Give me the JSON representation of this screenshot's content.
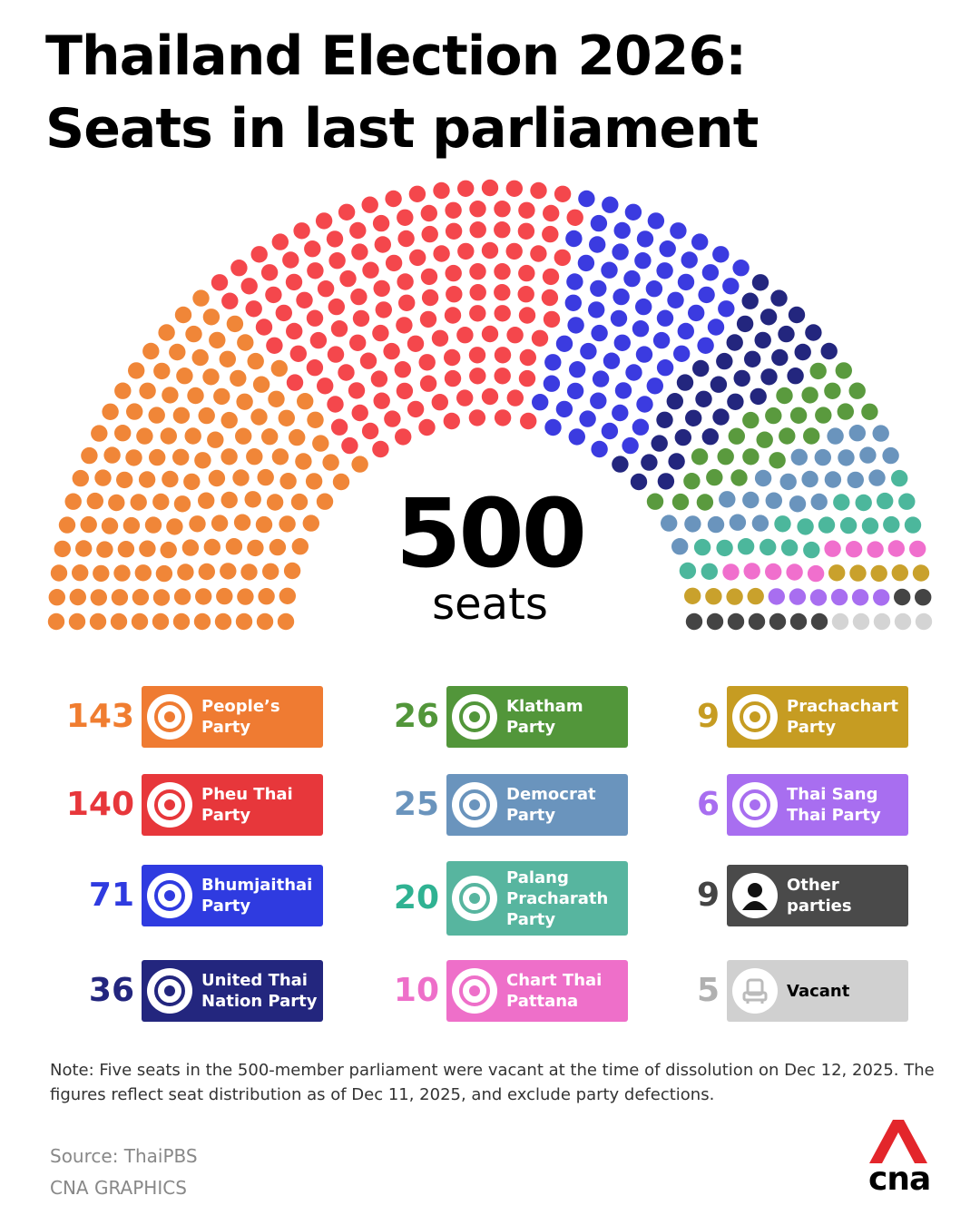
{
  "title_line1": "Thailand Election 2026:",
  "title_line2": "Seats in last parliament",
  "total": {
    "number": "500",
    "label": "seats"
  },
  "chart_data": {
    "type": "hemicycle",
    "title": "Thailand Election 2026: Seats in last parliament",
    "total_seats": 500,
    "series": [
      {
        "name": "People’s Party",
        "count": 143,
        "color": "#f08638"
      },
      {
        "name": "Pheu Thai Party",
        "count": 140,
        "color": "#f4474c"
      },
      {
        "name": "Bhumjaithai Party",
        "count": 71,
        "color": "#3b3be0"
      },
      {
        "name": "United Thai Nation Party",
        "count": 36,
        "color": "#23267e"
      },
      {
        "name": "Klatham Party",
        "count": 26,
        "color": "#5a9a3e"
      },
      {
        "name": "Democrat Party",
        "count": 25,
        "color": "#6a94bd"
      },
      {
        "name": "Palang Pracharath Party",
        "count": 20,
        "color": "#4cb79c"
      },
      {
        "name": "Chart Thai Pattana",
        "count": 10,
        "color": "#f06fcd"
      },
      {
        "name": "Prachachart Party",
        "count": 9,
        "color": "#c9a12c"
      },
      {
        "name": "Thai Sang Thai Party",
        "count": 6,
        "color": "#a86ef0"
      },
      {
        "name": "Other parties",
        "count": 9,
        "color": "#444444"
      },
      {
        "name": "Vacant",
        "count": 5,
        "color": "#d4d4d4"
      }
    ]
  },
  "legend": [
    {
      "count": "143",
      "name": "People’s\nParty",
      "count_color": "#f07d30",
      "box_color": "#ef7b32",
      "icon": "peoples-party-logo"
    },
    {
      "count": "140",
      "name": "Pheu Thai\nParty",
      "count_color": "#e7373b",
      "box_color": "#e7373b",
      "icon": "pheu-thai-logo"
    },
    {
      "count": "71",
      "name": "Bhumjaithai\nParty",
      "count_color": "#2f3be0",
      "box_color": "#2f3be0",
      "icon": "bhumjaithai-logo"
    },
    {
      "count": "36",
      "name": "United Thai\nNation Party",
      "count_color": "#23267e",
      "box_color": "#23267e",
      "icon": "united-thai-nation-logo"
    },
    {
      "count": "26",
      "name": "Klatham\nParty",
      "count_color": "#52963a",
      "box_color": "#52963a",
      "icon": "klatham-logo"
    },
    {
      "count": "25",
      "name": "Democrat\nParty",
      "count_color": "#6a94bd",
      "box_color": "#6a94bd",
      "icon": "democrat-logo"
    },
    {
      "count": "20",
      "name": "Palang\nPracharath\nParty",
      "count_color": "#2fb292",
      "box_color": "#57b59f",
      "icon": "palang-pracharath-logo"
    },
    {
      "count": "10",
      "name": "Chart Thai\nPattana",
      "count_color": "#ee6fc9",
      "box_color": "#ee6fc9",
      "icon": "chart-thai-pattana-logo"
    },
    {
      "count": "9",
      "name": "Prachachart\nParty",
      "count_color": "#c69c22",
      "box_color": "#c69c22",
      "icon": "prachachart-logo"
    },
    {
      "count": "6",
      "name": "Thai Sang\nThai Party",
      "count_color": "#a86ef0",
      "box_color": "#a86ef0",
      "icon": "thai-sang-thai-logo"
    },
    {
      "count": "9",
      "name": "Other parties",
      "count_color": "#444444",
      "box_color": "#4a4a4a",
      "icon": "person-icon"
    },
    {
      "count": "5",
      "name": "Vacant",
      "count_color": "#b0b0b0",
      "box_color": "#d0d0d0",
      "name_color": "#000000",
      "icon": "chair-icon"
    }
  ],
  "note": "Note: Five seats in the 500-member parliament were vacant at the time of dissolution on Dec 12, 2025. The figures reflect seat distribution as of Dec 11, 2025, and exclude party defections.",
  "source": "Source: ThaiPBS",
  "credit": "CNA GRAPHICS",
  "brand": "cna",
  "brand_color": "#e3262b"
}
